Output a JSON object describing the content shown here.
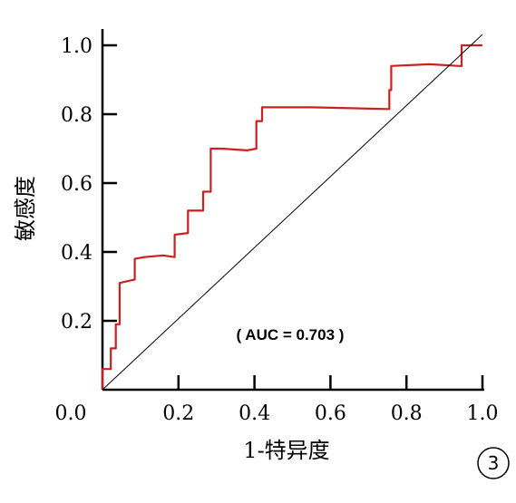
{
  "chart_data": {
    "type": "line",
    "xlabel": "1-特异度",
    "ylabel": "敏感度",
    "xlim": [
      0,
      1
    ],
    "ylim": [
      0,
      1
    ],
    "x_ticks": [
      "0.0",
      "0.2",
      "0.4",
      "0.6",
      "0.8",
      "1.0"
    ],
    "y_ticks": [
      "0.2",
      "0.4",
      "0.6",
      "0.8",
      "1.0"
    ],
    "annotation": "( AUC =  0.703 )",
    "panel_label": "3",
    "colors": {
      "roc": "#cc1f1f",
      "reference": "#000000",
      "axes": "#000000"
    },
    "series": [
      {
        "style": "step",
        "x": [
          0.0,
          0.0,
          0.022,
          0.022,
          0.035,
          0.035,
          0.045,
          0.045,
          0.085,
          0.085,
          0.11,
          0.16,
          0.19,
          0.19,
          0.225,
          0.225,
          0.265,
          0.265,
          0.285,
          0.285,
          0.315,
          0.38,
          0.405,
          0.405,
          0.42,
          0.42,
          0.55,
          0.75,
          0.755,
          0.755,
          0.76,
          0.76,
          0.86,
          0.94,
          0.945,
          0.945,
          1.0
        ],
        "y": [
          0.0,
          0.06,
          0.06,
          0.12,
          0.12,
          0.19,
          0.19,
          0.31,
          0.32,
          0.38,
          0.385,
          0.39,
          0.385,
          0.45,
          0.455,
          0.52,
          0.52,
          0.575,
          0.575,
          0.7,
          0.7,
          0.695,
          0.7,
          0.78,
          0.78,
          0.82,
          0.82,
          0.815,
          0.815,
          0.87,
          0.87,
          0.94,
          0.945,
          0.94,
          0.94,
          1.0,
          1.0
        ]
      },
      {
        "style": "reference",
        "x": [
          0,
          1
        ],
        "y": [
          0,
          1
        ]
      }
    ]
  }
}
